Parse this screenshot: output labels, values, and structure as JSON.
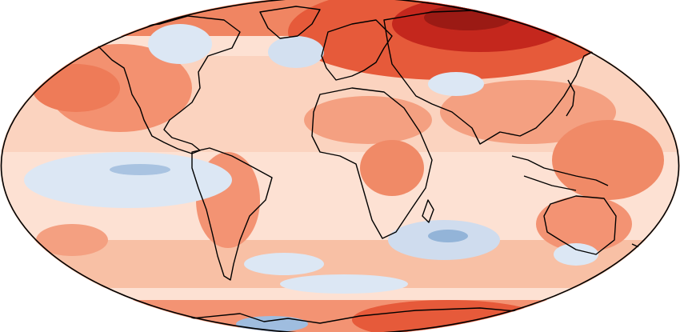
{
  "map": {
    "projection": "Robinson",
    "colormap": [
      "#2c6ab0",
      "#6d9ccc",
      "#b4cde6",
      "#dce7f4",
      "#fde6dc",
      "#fbc2a8",
      "#f69c7c",
      "#ef6f4e",
      "#e0452b",
      "#c4271d",
      "#9b1a14",
      "#6b0d0d"
    ],
    "land_outline_color": "#000000",
    "graticule": false,
    "legend": false
  }
}
